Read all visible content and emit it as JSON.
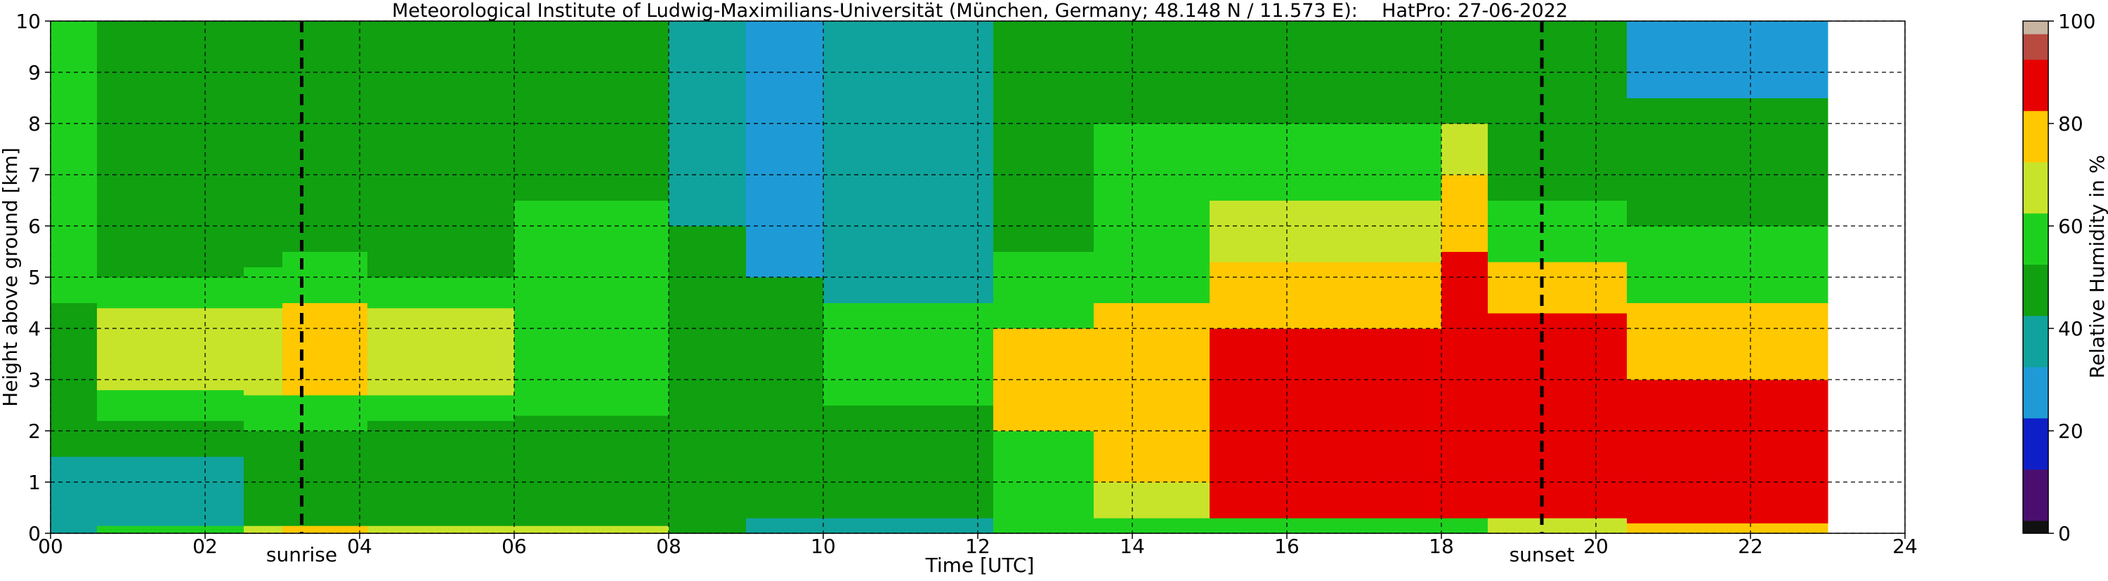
{
  "chart_data": {
    "type": "heatmap",
    "title": "Meteorological Institute of Ludwig-Maximilians-Universität (München, Germany; 48.148 N / 11.573 E):    HatPro: 27-06-2022",
    "xlabel": "Time [UTC]",
    "ylabel": "Height above ground [km]",
    "xlim": [
      0,
      24
    ],
    "ylim": [
      0,
      10
    ],
    "data_extent_hours": [
      0,
      23
    ],
    "x_ticks": [
      "00",
      "02",
      "04",
      "06",
      "08",
      "10",
      "12",
      "14",
      "16",
      "18",
      "20",
      "22",
      "24"
    ],
    "y_ticks": [
      "0",
      "1",
      "2",
      "3",
      "4",
      "5",
      "6",
      "7",
      "8",
      "9",
      "10"
    ],
    "grid": true,
    "colorbar": {
      "label": "Relative Humidity in %",
      "range": [
        0,
        100
      ],
      "ticks": [
        "0",
        "20",
        "40",
        "60",
        "80",
        "100"
      ],
      "bands": [
        {
          "from": 0,
          "to": 2.5,
          "color": "#111111"
        },
        {
          "from": 2.5,
          "to": 12.5,
          "color": "#4a0f6e"
        },
        {
          "from": 12.5,
          "to": 22.5,
          "color": "#0f1fc8"
        },
        {
          "from": 22.5,
          "to": 32.5,
          "color": "#1e9bd6"
        },
        {
          "from": 32.5,
          "to": 42.5,
          "color": "#10a39d"
        },
        {
          "from": 42.5,
          "to": 52.5,
          "color": "#10a010"
        },
        {
          "from": 52.5,
          "to": 62.5,
          "color": "#1ed01e"
        },
        {
          "from": 62.5,
          "to": 72.5,
          "color": "#c8e42a"
        },
        {
          "from": 72.5,
          "to": 82.5,
          "color": "#ffc800"
        },
        {
          "from": 82.5,
          "to": 92.5,
          "color": "#e60000"
        },
        {
          "from": 92.5,
          "to": 97.5,
          "color": "#b84a40"
        },
        {
          "from": 97.5,
          "to": 100,
          "color": "#c8b4a0"
        }
      ]
    },
    "events": [
      {
        "label": "sunrise",
        "time_hours": 3.25
      },
      {
        "label": "sunset",
        "time_hours": 19.3
      }
    ],
    "columns": [
      {
        "t0": 0.0,
        "t1": 0.6,
        "rh": [
          [
            0,
            0.3,
            35
          ],
          [
            0.3,
            1.5,
            38
          ],
          [
            1.5,
            2.4,
            45
          ],
          [
            2.4,
            4.5,
            50
          ],
          [
            4.5,
            10,
            55
          ]
        ]
      },
      {
        "t0": 0.6,
        "t1": 2.5,
        "rh": [
          [
            0,
            0.15,
            60
          ],
          [
            0.15,
            1.5,
            38
          ],
          [
            1.5,
            2.2,
            45
          ],
          [
            2.2,
            2.8,
            55
          ],
          [
            2.8,
            4.4,
            66
          ],
          [
            4.4,
            5.0,
            58
          ],
          [
            5.0,
            10,
            48
          ]
        ]
      },
      {
        "t0": 2.5,
        "t1": 3.0,
        "rh": [
          [
            0,
            0.15,
            70
          ],
          [
            0.15,
            2.0,
            46
          ],
          [
            2.0,
            2.7,
            56
          ],
          [
            2.7,
            4.4,
            70
          ],
          [
            4.4,
            5.2,
            60
          ],
          [
            5.2,
            10,
            48
          ]
        ]
      },
      {
        "t0": 3.0,
        "t1": 4.1,
        "rh": [
          [
            0,
            0.15,
            75
          ],
          [
            0.15,
            2.0,
            46
          ],
          [
            2.0,
            2.7,
            58
          ],
          [
            2.7,
            4.5,
            74
          ],
          [
            4.5,
            5.5,
            62
          ],
          [
            5.5,
            10,
            50
          ]
        ]
      },
      {
        "t0": 4.1,
        "t1": 6.0,
        "rh": [
          [
            0,
            0.15,
            72
          ],
          [
            0.15,
            2.2,
            47
          ],
          [
            2.2,
            2.7,
            58
          ],
          [
            2.7,
            4.4,
            68
          ],
          [
            4.4,
            5.0,
            60
          ],
          [
            5.0,
            10,
            48
          ]
        ]
      },
      {
        "t0": 6.0,
        "t1": 8.0,
        "rh": [
          [
            0,
            0.15,
            68
          ],
          [
            0.15,
            2.3,
            47
          ],
          [
            2.3,
            4.5,
            62
          ],
          [
            4.5,
            6.5,
            55
          ],
          [
            6.5,
            10,
            45
          ]
        ]
      },
      {
        "t0": 8.0,
        "t1": 9.0,
        "rh": [
          [
            0,
            0.3,
            45
          ],
          [
            0.3,
            3.5,
            50
          ],
          [
            3.5,
            6.0,
            48
          ],
          [
            6.0,
            10,
            40
          ]
        ]
      },
      {
        "t0": 9.0,
        "t1": 10.0,
        "rh": [
          [
            0,
            0.3,
            40
          ],
          [
            0.3,
            2.5,
            46
          ],
          [
            2.5,
            5.0,
            45
          ],
          [
            5.0,
            10,
            31
          ]
        ]
      },
      {
        "t0": 10.0,
        "t1": 12.2,
        "rh": [
          [
            0,
            0.3,
            42
          ],
          [
            0.3,
            2.5,
            50
          ],
          [
            2.5,
            4.5,
            56
          ],
          [
            4.5,
            10,
            38
          ]
        ]
      },
      {
        "t0": 12.2,
        "t1": 13.5,
        "rh": [
          [
            0,
            0.4,
            55
          ],
          [
            0.4,
            2.0,
            62
          ],
          [
            2.0,
            4.0,
            76
          ],
          [
            4.0,
            5.5,
            62
          ],
          [
            5.5,
            7.5,
            52
          ],
          [
            7.5,
            10,
            46
          ]
        ]
      },
      {
        "t0": 13.5,
        "t1": 15.0,
        "rh": [
          [
            0,
            0.3,
            55
          ],
          [
            0.3,
            1.0,
            70
          ],
          [
            1.0,
            3.0,
            80
          ],
          [
            3.0,
            4.5,
            77
          ],
          [
            4.5,
            6.5,
            62
          ],
          [
            6.5,
            8.0,
            55
          ],
          [
            8.0,
            10,
            47
          ]
        ]
      },
      {
        "t0": 15.0,
        "t1": 18.0,
        "rh": [
          [
            0,
            0.3,
            60
          ],
          [
            0.3,
            4.0,
            86
          ],
          [
            4.0,
            5.3,
            75
          ],
          [
            5.3,
            6.5,
            64
          ],
          [
            6.5,
            8.0,
            55
          ],
          [
            8.0,
            10,
            48
          ]
        ]
      },
      {
        "t0": 18.0,
        "t1": 18.6,
        "rh": [
          [
            0,
            0.3,
            60
          ],
          [
            0.3,
            5.5,
            87
          ],
          [
            5.5,
            7.0,
            75
          ],
          [
            7.0,
            8.0,
            64
          ],
          [
            8.0,
            10,
            52
          ]
        ]
      },
      {
        "t0": 18.6,
        "t1": 20.4,
        "rh": [
          [
            0,
            0.3,
            65
          ],
          [
            0.3,
            4.3,
            86
          ],
          [
            4.3,
            5.3,
            75
          ],
          [
            5.3,
            6.5,
            62
          ],
          [
            6.5,
            10,
            52
          ]
        ]
      },
      {
        "t0": 20.4,
        "t1": 23.0,
        "rh": [
          [
            0,
            0.2,
            75
          ],
          [
            0.2,
            3.0,
            86
          ],
          [
            3.0,
            4.5,
            75
          ],
          [
            4.5,
            6.0,
            58
          ],
          [
            6.0,
            8.5,
            45
          ],
          [
            8.5,
            10,
            30
          ]
        ]
      }
    ]
  }
}
